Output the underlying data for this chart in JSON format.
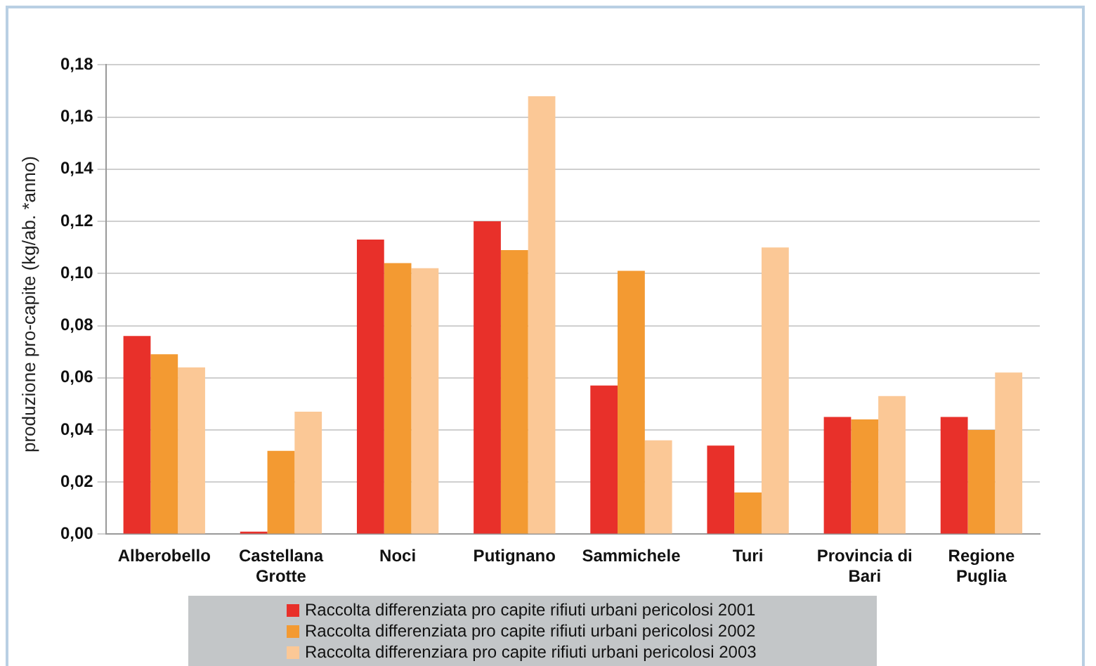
{
  "chart_data": {
    "type": "bar",
    "ylabel": "produzione pro-capite (kg/ab. *anno)",
    "categories": [
      "Alberobello",
      "Castellana Grotte",
      "Noci",
      "Putignano",
      "Sammichele",
      "Turi",
      "Provincia di Bari",
      "Regione Puglia"
    ],
    "series": [
      {
        "name": "Raccolta differenziata pro capite rifiuti urbani pericolosi 2001",
        "color": "#e8302a",
        "values": [
          0.076,
          0.001,
          0.113,
          0.12,
          0.057,
          0.034,
          0.045,
          0.045
        ]
      },
      {
        "name": "Raccolta differenziata pro capite rifiuti urbani pericolosi 2002",
        "color": "#f39a32",
        "values": [
          0.069,
          0.032,
          0.104,
          0.109,
          0.101,
          0.016,
          0.044,
          0.04
        ]
      },
      {
        "name": "Raccolta differenziara pro capite rifiuti urbani pericolosi 2003",
        "color": "#fbc896",
        "values": [
          0.064,
          0.047,
          0.102,
          0.168,
          0.036,
          0.11,
          0.053,
          0.062
        ]
      }
    ],
    "ylim": [
      0,
      0.18
    ],
    "yticks": [
      {
        "value": 0,
        "label": "0,00"
      },
      {
        "value": 0.02,
        "label": "0,02"
      },
      {
        "value": 0.04,
        "label": "0,04"
      },
      {
        "value": 0.06,
        "label": "0,06"
      },
      {
        "value": 0.08,
        "label": "0,08"
      },
      {
        "value": 0.1,
        "label": "0,10"
      },
      {
        "value": 0.12,
        "label": "0,12"
      },
      {
        "value": 0.14,
        "label": "0,14"
      },
      {
        "value": 0.16,
        "label": "0,16"
      },
      {
        "value": 0.18,
        "label": "0,18"
      }
    ],
    "grid": "y",
    "legend": "bottom"
  }
}
